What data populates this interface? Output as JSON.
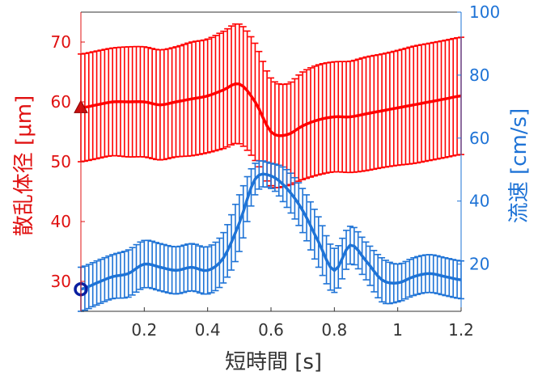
{
  "chart_data": {
    "type": "line",
    "xlabel": "短時間 [s]",
    "ylabel_left": "散乱体径 [μm]",
    "ylabel_right": "流速 [cm/s]",
    "xlim": [
      0,
      1.2
    ],
    "ylim_left": [
      25,
      75
    ],
    "ylim_right": [
      5,
      100
    ],
    "x_ticks": [
      {
        "v": 0.2,
        "label": "0.2"
      },
      {
        "v": 0.4,
        "label": "0.4"
      },
      {
        "v": 0.6,
        "label": "0.6"
      },
      {
        "v": 0.8,
        "label": "0.8"
      },
      {
        "v": 1.0,
        "label": "1"
      },
      {
        "v": 1.2,
        "label": "1.2"
      }
    ],
    "y_ticks_left": [
      {
        "v": 30,
        "label": "30"
      },
      {
        "v": 40,
        "label": "40"
      },
      {
        "v": 50,
        "label": "50"
      },
      {
        "v": 60,
        "label": "60"
      },
      {
        "v": 70,
        "label": "70"
      }
    ],
    "y_ticks_right": [
      {
        "v": 20,
        "label": "20"
      },
      {
        "v": 40,
        "label": "40"
      },
      {
        "v": 60,
        "label": "60"
      },
      {
        "v": 80,
        "label": "80"
      },
      {
        "v": 100,
        "label": "100"
      }
    ],
    "grid": false,
    "series": [
      {
        "axis": "left",
        "color": "#ff0000",
        "marker": "triangle",
        "x": [
          0,
          0.05,
          0.1,
          0.15,
          0.2,
          0.25,
          0.3,
          0.35,
          0.4,
          0.45,
          0.5,
          0.55,
          0.6,
          0.65,
          0.7,
          0.75,
          0.8,
          0.85,
          0.9,
          0.95,
          1.0,
          1.05,
          1.1,
          1.15,
          1.2
        ],
        "y": [
          59,
          59.5,
          60,
          60,
          60,
          59.5,
          60,
          60.5,
          61,
          62,
          63,
          60,
          55,
          54.5,
          56,
          57,
          57.5,
          57.5,
          58,
          58.5,
          59,
          59.5,
          60,
          60.5,
          61
        ],
        "err": [
          9,
          9,
          9,
          9.2,
          9.2,
          9.2,
          9.2,
          9.5,
          9.5,
          9.8,
          10,
          9.8,
          9,
          8.5,
          9,
          9.2,
          9.2,
          9.3,
          9.5,
          9.5,
          9.6,
          9.8,
          9.8,
          9.8,
          9.8
        ]
      },
      {
        "axis": "right",
        "color": "#1e73d6",
        "marker": "circle",
        "marker_color": "#0a1fa0",
        "x": [
          0,
          0.05,
          0.1,
          0.15,
          0.2,
          0.25,
          0.3,
          0.35,
          0.4,
          0.45,
          0.5,
          0.55,
          0.6,
          0.65,
          0.7,
          0.75,
          0.8,
          0.85,
          0.9,
          0.95,
          1.0,
          1.05,
          1.1,
          1.15,
          1.2
        ],
        "y": [
          12,
          14,
          16,
          17,
          20,
          19,
          18,
          19,
          18,
          22,
          33,
          47,
          48,
          44,
          37,
          27,
          18,
          26,
          21,
          15,
          14,
          16,
          17,
          16,
          15
        ],
        "err": [
          7,
          7,
          7,
          7.5,
          7.5,
          7.5,
          7.5,
          7.5,
          7.5,
          8,
          9,
          5,
          4,
          6,
          7,
          8,
          7,
          6,
          6,
          7,
          6,
          6,
          6,
          6,
          6
        ]
      }
    ]
  }
}
